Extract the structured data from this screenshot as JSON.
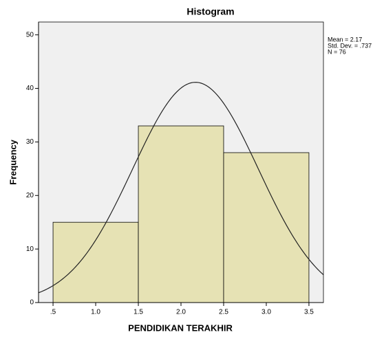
{
  "chart_data": {
    "type": "histogram",
    "title": "Histogram",
    "x_label": "PENDIDIKAN TERAKHIR",
    "y_label": "Frequency",
    "bins": [
      0.5,
      1.5,
      2.5,
      3.5
    ],
    "counts": [
      15,
      33,
      28
    ],
    "color": "#e6e2b4",
    "xlim": [
      0.33,
      3.67
    ],
    "ylim": [
      0,
      52.4
    ],
    "xticks": [
      {
        "value": 0.5,
        "label": ".5"
      },
      {
        "value": 1,
        "label": "1.0"
      },
      {
        "value": 1.5,
        "label": "1.5"
      },
      {
        "value": 2,
        "label": "2.0"
      },
      {
        "value": 2.5,
        "label": "2.5"
      },
      {
        "value": 3,
        "label": "3.0"
      },
      {
        "value": 3.5,
        "label": "3.5"
      }
    ],
    "yticks": [
      0,
      10,
      20,
      30,
      40,
      50
    ],
    "stats": [
      {
        "label": "Mean = 2.17",
        "value": 2.17
      },
      {
        "label": "Std. Dev. = .737",
        "value": 0.737
      },
      {
        "label": "N = 76",
        "value": 76
      }
    ]
  }
}
